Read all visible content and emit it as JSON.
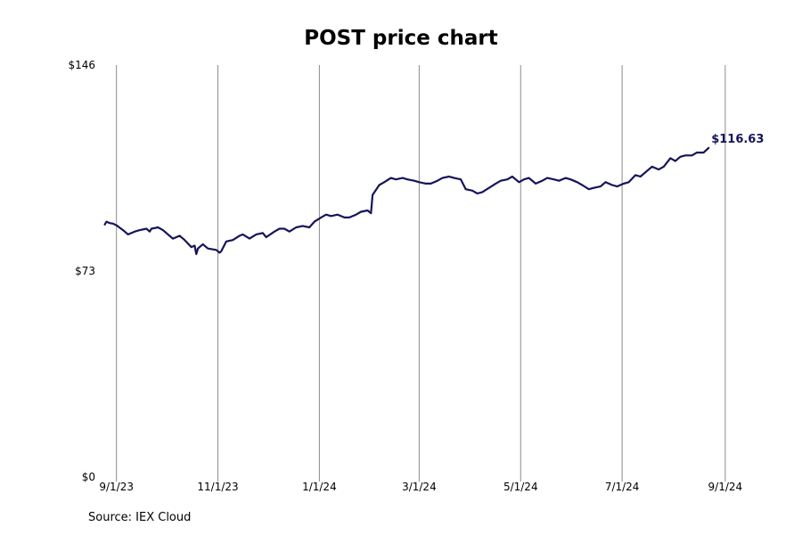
{
  "chart_data": {
    "type": "line",
    "title": "POST price chart",
    "xlabel": "",
    "ylabel": "",
    "x_ticks": [
      "9/1/23",
      "11/1/23",
      "1/1/24",
      "3/1/24",
      "5/1/24",
      "7/1/24",
      "9/1/24"
    ],
    "y_ticks": [
      0,
      73,
      146
    ],
    "y_tick_labels": [
      "$0",
      "$73",
      "$146"
    ],
    "ylim": [
      0,
      146
    ],
    "xlim": [
      "2023-08-22",
      "2024-09-15"
    ],
    "grid": "vertical",
    "last_value_label": "$116.63",
    "source": "Source: IEX Cloud",
    "colors": {
      "line": "#15145a",
      "grid": "#8c8c8c"
    },
    "series": [
      {
        "x": [
          "2023-08-25",
          "2023-08-26",
          "2023-08-28",
          "2023-08-30",
          "2023-09-01",
          "2023-09-05",
          "2023-09-08",
          "2023-09-12",
          "2023-09-15",
          "2023-09-19",
          "2023-09-21",
          "2023-09-22",
          "2023-09-26",
          "2023-09-29",
          "2023-10-02",
          "2023-10-05",
          "2023-10-09",
          "2023-10-12",
          "2023-10-16",
          "2023-10-18",
          "2023-10-19",
          "2023-10-20",
          "2023-10-23",
          "2023-10-26",
          "2023-10-31",
          "2023-11-02",
          "2023-11-03",
          "2023-11-06",
          "2023-11-10",
          "2023-11-14",
          "2023-11-16",
          "2023-11-20",
          "2023-11-24",
          "2023-11-28",
          "2023-11-30",
          "2023-12-05",
          "2023-12-08",
          "2023-12-11",
          "2023-12-14",
          "2023-12-18",
          "2023-12-22",
          "2023-12-26",
          "2023-12-29",
          "2024-01-02",
          "2024-01-05",
          "2024-01-08",
          "2024-01-12",
          "2024-01-16",
          "2024-01-19",
          "2024-01-23",
          "2024-01-26",
          "2024-01-30",
          "2024-02-01",
          "2024-02-02",
          "2024-02-06",
          "2024-02-09",
          "2024-02-13",
          "2024-02-16",
          "2024-02-20",
          "2024-02-23",
          "2024-02-27",
          "2024-03-01",
          "2024-03-05",
          "2024-03-08",
          "2024-03-12",
          "2024-03-15",
          "2024-03-19",
          "2024-03-22",
          "2024-03-26",
          "2024-03-29",
          "2024-04-02",
          "2024-04-05",
          "2024-04-08",
          "2024-04-12",
          "2024-04-16",
          "2024-04-19",
          "2024-04-23",
          "2024-04-26",
          "2024-04-30",
          "2024-05-03",
          "2024-05-06",
          "2024-05-10",
          "2024-05-14",
          "2024-05-17",
          "2024-05-21",
          "2024-05-24",
          "2024-05-28",
          "2024-05-31",
          "2024-06-04",
          "2024-06-07",
          "2024-06-11",
          "2024-06-14",
          "2024-06-18",
          "2024-06-21",
          "2024-06-25",
          "2024-06-28",
          "2024-07-02",
          "2024-07-05",
          "2024-07-09",
          "2024-07-12",
          "2024-07-16",
          "2024-07-19",
          "2024-07-23",
          "2024-07-26",
          "2024-07-30",
          "2024-08-02",
          "2024-08-05",
          "2024-08-08",
          "2024-08-12",
          "2024-08-15",
          "2024-08-19",
          "2024-08-22"
        ],
        "y": [
          89.5,
          90.5,
          90.0,
          89.8,
          89.2,
          87.5,
          86.0,
          87.0,
          87.5,
          88.0,
          87.0,
          88.0,
          88.5,
          87.5,
          86.0,
          84.5,
          85.5,
          84.0,
          81.5,
          82.0,
          79.0,
          81.0,
          82.5,
          81.0,
          80.5,
          79.5,
          80.0,
          83.5,
          84.0,
          85.5,
          86.0,
          84.5,
          86.0,
          86.5,
          85.0,
          87.0,
          88.0,
          88.0,
          87.0,
          88.5,
          89.0,
          88.5,
          90.5,
          92.0,
          93.0,
          92.5,
          93.0,
          92.0,
          92.0,
          93.0,
          94.0,
          94.5,
          93.5,
          100.0,
          103.5,
          104.5,
          106.0,
          105.5,
          106.0,
          105.5,
          105.0,
          104.5,
          104.0,
          104.0,
          105.0,
          106.0,
          106.5,
          106.0,
          105.5,
          102.0,
          101.5,
          100.5,
          101.0,
          102.5,
          104.0,
          105.0,
          105.5,
          106.5,
          104.5,
          105.5,
          106.0,
          104.0,
          105.0,
          106.0,
          105.5,
          105.0,
          106.0,
          105.5,
          104.5,
          103.5,
          102.0,
          102.5,
          103.0,
          104.5,
          103.5,
          103.0,
          104.0,
          104.5,
          107.0,
          106.5,
          108.5,
          110.0,
          109.0,
          110.0,
          113.0,
          112.0,
          113.5,
          114.0,
          114.0,
          115.0,
          115.0,
          116.63
        ]
      }
    ]
  }
}
